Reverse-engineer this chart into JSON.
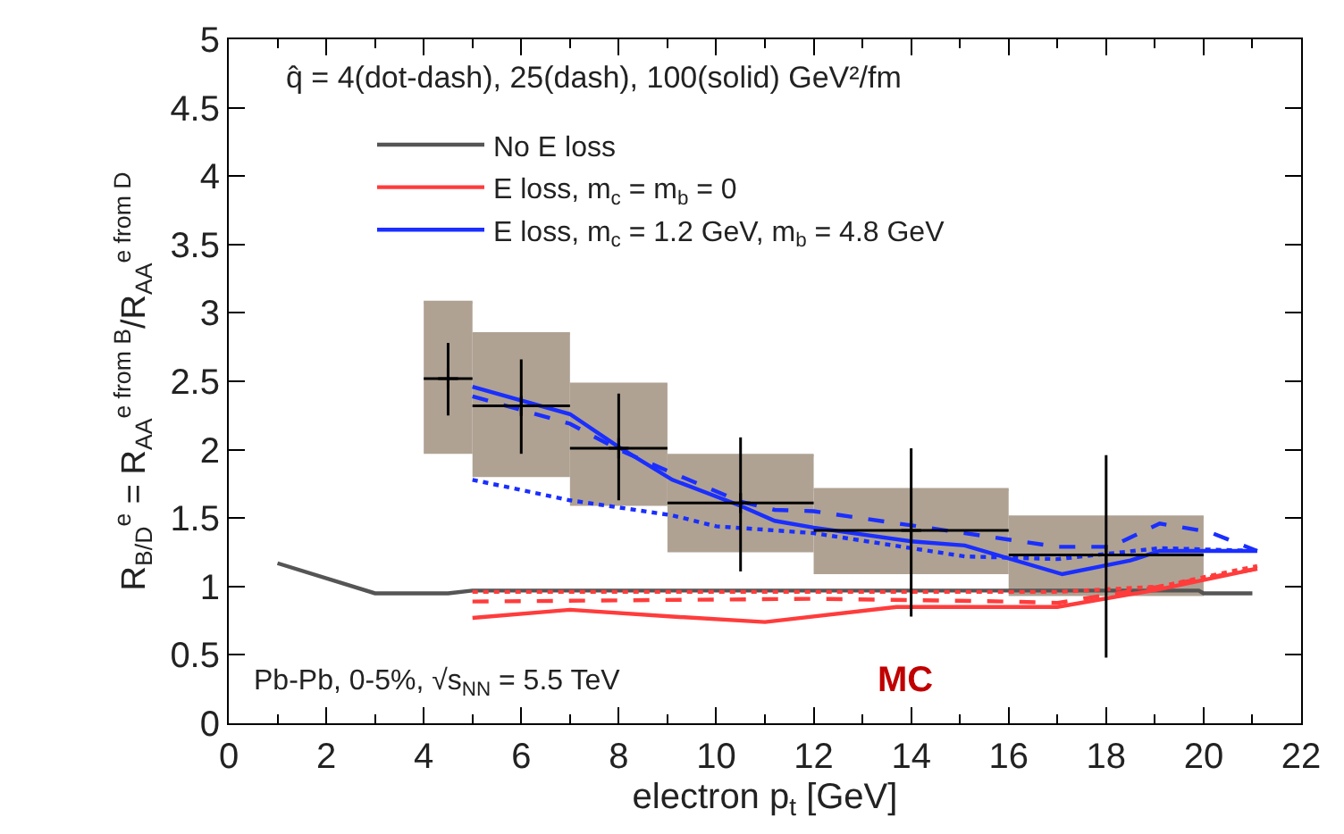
{
  "chart_data": {
    "type": "line",
    "xlabel": "electron p$_{t}$ [GeV]",
    "ylabel": "R$_{B/D}$$^{e}$ = R$_{AA}$$^{e from B}$/R$_{AA}$$^{e from D}$",
    "annotations": [
      "q̂ = 4(dot-dash), 25(dash), 100(solid) GeV²/fm",
      "Pb-Pb, 0-5%, √s$_{NN}$ = 5.5 TeV",
      "MC"
    ],
    "xlim": [
      0,
      22
    ],
    "xticks": [
      0,
      2,
      4,
      6,
      8,
      10,
      12,
      14,
      16,
      18,
      20,
      22
    ],
    "ylim": [
      0,
      5
    ],
    "yticks": [
      0,
      0.5,
      1,
      1.5,
      2,
      2.5,
      3,
      3.5,
      4,
      4.5,
      5
    ],
    "legend": "top",
    "series": [
      {
        "type": "bar",
        "color": "#afa293",
        "x": [
          4.5,
          6,
          8,
          10.5,
          14,
          18
        ],
        "base": [
          1.97,
          1.8,
          1.59,
          1.25,
          1.09,
          0.93
        ],
        "values": [
          1.11,
          1.05,
          0.89,
          0.71,
          0.62,
          0.58
        ],
        "xerrors": [
          [
            4,
            5
          ],
          [
            5,
            7
          ],
          [
            7,
            9
          ],
          [
            9,
            12
          ],
          [
            12,
            16
          ],
          [
            16,
            20
          ]
        ]
      },
      {
        "name": "No E loss",
        "color": "#555555",
        "line_style": "solid",
        "x": [
          1,
          3,
          4.5,
          5,
          19.9,
          20,
          21
        ],
        "values": [
          1.17,
          0.95,
          0.95,
          0.97,
          0.97,
          0.95,
          0.95
        ]
      },
      {
        "name": "E loss, m$_{c}$ = m$_{b}$ = 0",
        "color": "#ff3c3c",
        "line_style": "solid",
        "x": [
          5,
          7,
          9.1,
          11,
          13.7,
          17,
          19.1,
          21.1
        ],
        "values": [
          0.77,
          0.83,
          0.78,
          0.74,
          0.85,
          0.85,
          0.98,
          1.13
        ]
      },
      {
        "color": "#ff3c3c",
        "line_style": "dashed",
        "x": [
          5,
          12,
          16,
          17,
          19.1,
          21.1
        ],
        "values": [
          0.89,
          0.91,
          0.89,
          0.88,
          1.0,
          1.13
        ]
      },
      {
        "color": "#ff3c3c",
        "line_style": "dotted",
        "x": [
          5,
          12,
          17,
          19.1,
          21.1
        ],
        "values": [
          0.96,
          0.96,
          0.96,
          1.0,
          1.15
        ]
      },
      {
        "name": "E loss, m$_{c}$ = 1.2 GeV, m$_{b}$ = 4.8 GeV",
        "color": "#1a2eff",
        "line_style": "solid",
        "x": [
          5,
          7,
          8,
          9.1,
          10.5,
          11.2,
          12,
          14,
          15.1,
          17.1,
          18.5,
          19.1,
          21.1
        ],
        "values": [
          2.46,
          2.26,
          2.02,
          1.78,
          1.59,
          1.48,
          1.43,
          1.33,
          1.3,
          1.09,
          1.19,
          1.26,
          1.26
        ]
      },
      {
        "color": "#1a2eff",
        "line_style": "dashed",
        "x": [
          5,
          7,
          8,
          9.1,
          10.5,
          11.2,
          12,
          15.1,
          17,
          18.1,
          19.1,
          20.1,
          21.1
        ],
        "values": [
          2.39,
          2.19,
          2.0,
          1.83,
          1.62,
          1.56,
          1.55,
          1.39,
          1.29,
          1.29,
          1.46,
          1.4,
          1.26
        ]
      },
      {
        "color": "#1a2eff",
        "line_style": "dotted",
        "x": [
          5,
          7,
          9.1,
          10,
          12,
          15.1,
          17,
          19.1,
          21.1
        ],
        "values": [
          1.78,
          1.63,
          1.52,
          1.44,
          1.39,
          1.22,
          1.2,
          1.28,
          1.26
        ]
      },
      {
        "type": "scatter",
        "color": "#000000",
        "marker": "cross",
        "x": [
          4.5,
          6,
          8,
          10.5,
          14,
          18
        ],
        "values": [
          2.52,
          2.32,
          2.01,
          1.61,
          1.41,
          1.23
        ],
        "errors": [
          [
            2.25,
            2.78
          ],
          [
            1.97,
            2.66
          ],
          [
            1.63,
            2.41
          ],
          [
            1.11,
            2.09
          ],
          [
            0.78,
            2.01
          ],
          [
            0.48,
            1.96
          ]
        ],
        "xerrors": [
          [
            4,
            5
          ],
          [
            5,
            7
          ],
          [
            7,
            9
          ],
          [
            9,
            12
          ],
          [
            12,
            16
          ],
          [
            16,
            20
          ]
        ]
      }
    ]
  }
}
